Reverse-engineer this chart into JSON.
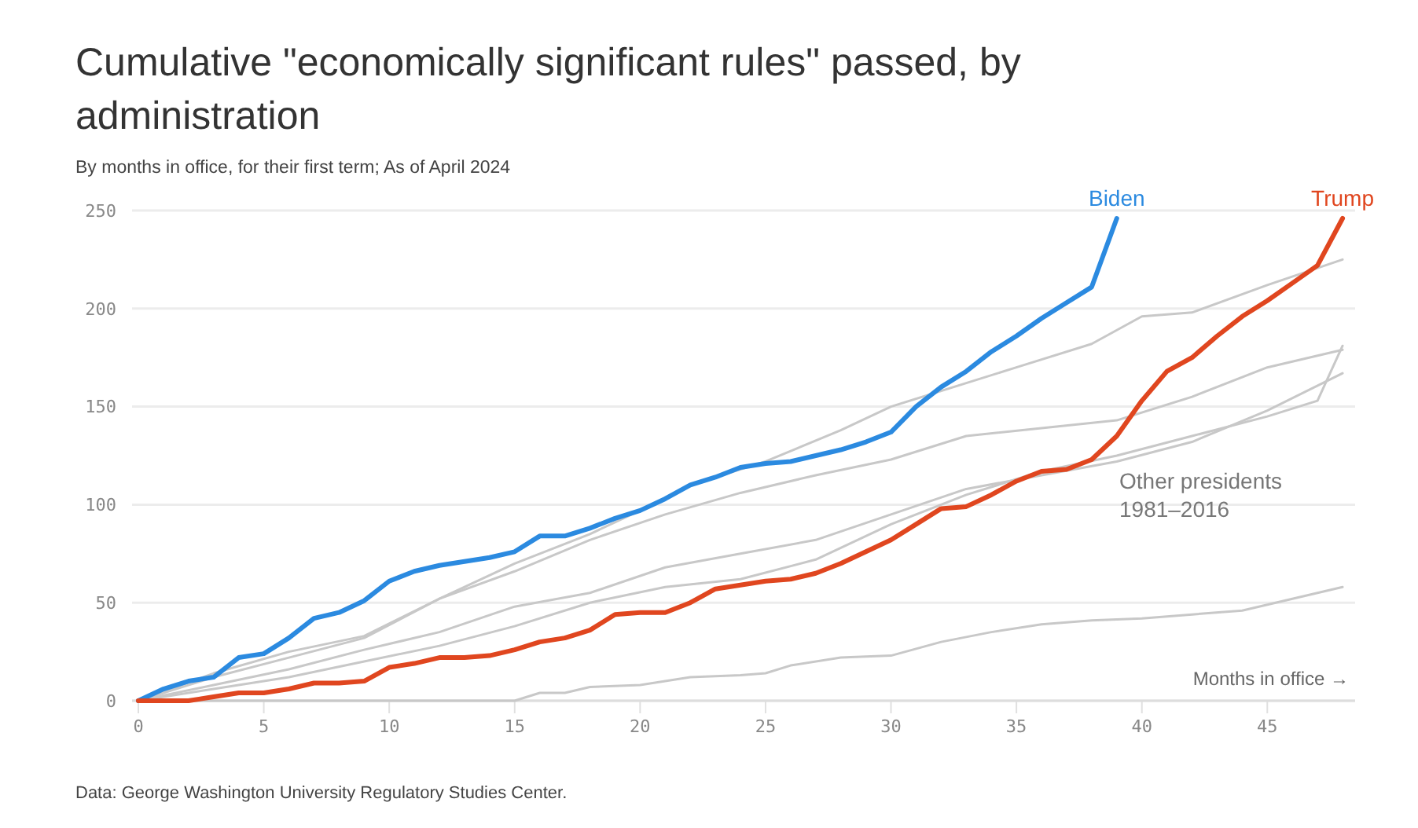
{
  "chart_data": {
    "type": "line",
    "title": "Cumulative \"economically significant rules\" passed, by administration",
    "subtitle": "By months in office, for their first term; As of April 2024",
    "xlabel": "Months in office →",
    "xlim": [
      0,
      48.5
    ],
    "xticks": [
      0,
      5,
      10,
      15,
      20,
      25,
      30,
      35,
      40,
      45
    ],
    "ylim": [
      0,
      250
    ],
    "yticks": [
      0,
      50,
      100,
      150,
      200,
      250
    ],
    "grid": "y",
    "marker": "none",
    "line_style": "solid",
    "series": [
      {
        "color": "#c8c8c8",
        "x": [
          0,
          3,
          6,
          9,
          12,
          15,
          18,
          20,
          22,
          25,
          28,
          30,
          33,
          35,
          38,
          40,
          42,
          45,
          48
        ],
        "values": [
          0,
          12,
          22,
          32,
          52,
          70,
          85,
          97,
          110,
          122,
          138,
          150,
          162,
          170,
          182,
          196,
          198,
          212,
          225
        ]
      },
      {
        "color": "#c8c8c8",
        "x": [
          0,
          3,
          6,
          9,
          12,
          15,
          18,
          21,
          24,
          27,
          30,
          33,
          36,
          39,
          42,
          45,
          48
        ],
        "values": [
          0,
          14,
          25,
          33,
          52,
          66,
          82,
          95,
          106,
          115,
          123,
          135,
          139,
          143,
          155,
          170,
          179
        ]
      },
      {
        "color": "#c8c8c8",
        "x": [
          0,
          3,
          6,
          9,
          12,
          15,
          18,
          21,
          24,
          27,
          30,
          33,
          36,
          39,
          42,
          45,
          47,
          48
        ],
        "values": [
          0,
          6,
          12,
          20,
          28,
          38,
          50,
          58,
          62,
          72,
          90,
          105,
          117,
          125,
          135,
          145,
          153,
          181
        ]
      },
      {
        "color": "#c8c8c8",
        "x": [
          0,
          3,
          6,
          9,
          12,
          15,
          18,
          21,
          24,
          27,
          30,
          33,
          36,
          39,
          42,
          45,
          48
        ],
        "values": [
          0,
          8,
          16,
          26,
          35,
          48,
          55,
          68,
          75,
          82,
          95,
          108,
          115,
          122,
          132,
          148,
          167
        ]
      },
      {
        "color": "#c8c8c8",
        "x": [
          0,
          15,
          16,
          17,
          18,
          20,
          22,
          24,
          25,
          26,
          28,
          30,
          32,
          34,
          36,
          38,
          40,
          42,
          44,
          46,
          48
        ],
        "values": [
          0,
          0,
          4,
          4,
          7,
          8,
          12,
          13,
          14,
          18,
          22,
          23,
          30,
          35,
          39,
          41,
          42,
          44,
          46,
          52,
          58
        ]
      },
      {
        "name": "Biden",
        "color": "#2b8ae0",
        "x": [
          0,
          1,
          2,
          3,
          4,
          5,
          6,
          7,
          8,
          9,
          10,
          11,
          12,
          13,
          14,
          15,
          16,
          17,
          18,
          19,
          20,
          21,
          22,
          23,
          24,
          25,
          26,
          27,
          28,
          29,
          30,
          31,
          32,
          33,
          34,
          35,
          36,
          37,
          38,
          39
        ],
        "values": [
          0,
          6,
          10,
          12,
          22,
          24,
          32,
          42,
          45,
          51,
          61,
          66,
          69,
          71,
          73,
          76,
          84,
          84,
          88,
          93,
          97,
          103,
          110,
          114,
          119,
          121,
          122,
          125,
          128,
          132,
          137,
          150,
          160,
          168,
          178,
          186,
          195,
          203,
          211,
          246
        ]
      },
      {
        "name": "Trump",
        "color": "#e0461f",
        "x": [
          0,
          1,
          2,
          3,
          4,
          5,
          6,
          7,
          8,
          9,
          10,
          11,
          12,
          13,
          14,
          15,
          16,
          17,
          18,
          19,
          20,
          21,
          22,
          23,
          24,
          25,
          26,
          27,
          28,
          29,
          30,
          31,
          32,
          33,
          34,
          35,
          36,
          37,
          38,
          39,
          40,
          41,
          42,
          43,
          44,
          45,
          46,
          47,
          48
        ],
        "values": [
          0,
          0,
          0,
          2,
          4,
          4,
          6,
          9,
          9,
          10,
          17,
          19,
          22,
          22,
          23,
          26,
          30,
          32,
          36,
          44,
          45,
          45,
          50,
          57,
          59,
          61,
          62,
          65,
          70,
          76,
          82,
          90,
          98,
          99,
          105,
          112,
          117,
          118,
          123,
          135,
          153,
          168,
          175,
          186,
          196,
          204,
          213,
          222,
          246
        ]
      }
    ],
    "annotations": [
      "Other presidents\n1981–2016",
      "Data: George Washington University Regulatory Studies Center."
    ]
  }
}
